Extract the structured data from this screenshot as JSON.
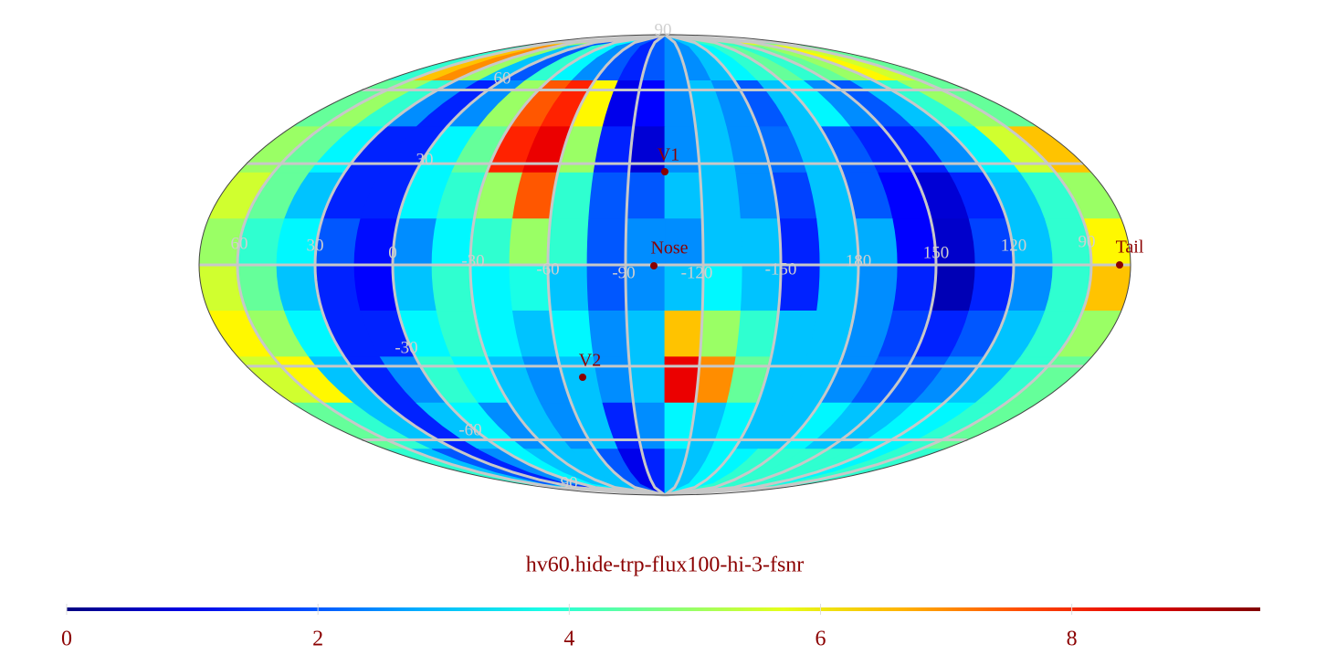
{
  "chart_data": {
    "type": "heatmap",
    "projection": "mollweide",
    "colormap": "jet",
    "title": "hv60.hide-trp-flux100-hi-3-fsnr",
    "clim": [
      0,
      9.5
    ],
    "colorbar_ticks": [
      0,
      2,
      4,
      6,
      8
    ],
    "lon_labels": [
      "60",
      "30",
      "0",
      "-30",
      "-60",
      "-90",
      "-120",
      "-150",
      "180",
      "150",
      "120",
      "90"
    ],
    "lat_labels": [
      "90",
      "60",
      "30",
      "-30",
      "-60",
      "-90"
    ],
    "markers": [
      "V1",
      "Nose",
      "Tail",
      "V2"
    ],
    "values": [
      [
        4,
        6.5,
        7,
        5,
        3,
        2,
        4,
        3.5,
        2.5,
        2,
        1.5,
        2,
        2.5,
        2.5,
        3,
        3.5,
        4,
        4.5,
        4,
        4.5,
        5,
        6,
        5.5,
        4.5
      ],
      [
        4.5,
        5,
        4,
        2.5,
        1.5,
        2.5,
        5,
        7.5,
        8,
        6,
        1,
        1.2,
        2.5,
        3,
        2.5,
        2,
        3,
        3.5,
        2.5,
        2,
        3,
        4,
        5,
        4.5
      ],
      [
        5,
        4.5,
        3.5,
        1.5,
        1.5,
        3.5,
        4.5,
        8,
        8.5,
        5,
        1.5,
        0.8,
        2.5,
        3,
        2.5,
        2.2,
        3,
        2,
        1.5,
        1.5,
        2.5,
        3.5,
        5.5,
        6.5
      ],
      [
        5.5,
        4.5,
        3,
        1.5,
        1.5,
        3.5,
        4,
        5,
        7.5,
        4,
        2,
        2,
        3,
        3,
        2.5,
        1.8,
        3,
        2,
        1.2,
        0.8,
        1.5,
        3,
        4,
        5
      ],
      [
        5,
        4,
        3.5,
        2,
        1.3,
        2.5,
        3.5,
        4,
        5,
        4,
        2,
        2.5,
        2.5,
        3,
        3,
        1.5,
        3,
        2.8,
        1.2,
        0.7,
        1.8,
        3,
        4,
        6
      ],
      [
        5.5,
        4.5,
        3,
        1.5,
        1.2,
        3,
        4,
        3.5,
        3.8,
        3,
        2,
        2.5,
        3,
        3.5,
        3,
        1.5,
        3,
        2.5,
        1.5,
        0.5,
        1.5,
        2.5,
        4,
        6.5
      ],
      [
        6,
        5,
        3.5,
        1.5,
        1.5,
        3.5,
        4,
        3.5,
        3,
        3.5,
        2.5,
        3,
        6.5,
        5,
        4,
        3,
        3,
        2.5,
        1.8,
        1.5,
        2,
        3,
        4,
        5
      ],
      [
        5.5,
        6,
        3,
        1.5,
        2.5,
        4,
        3.5,
        3,
        2.5,
        3,
        2.5,
        3,
        8.5,
        7,
        4.5,
        3,
        3,
        2.5,
        2,
        2,
        2.5,
        3,
        4,
        4.5
      ],
      [
        4.5,
        4,
        3,
        1.5,
        3,
        3.5,
        2.5,
        3,
        2.5,
        3,
        1.5,
        2.5,
        3.5,
        3,
        3.5,
        3,
        3,
        3.5,
        3,
        3,
        3.5,
        3.5,
        4,
        4.5
      ],
      [
        4,
        3,
        2,
        1.5,
        2.5,
        3.5,
        3,
        3,
        3,
        2,
        1,
        1.5,
        3,
        3,
        3.5,
        3.5,
        4,
        4,
        4,
        4,
        4,
        3.5,
        4,
        4
      ]
    ]
  }
}
